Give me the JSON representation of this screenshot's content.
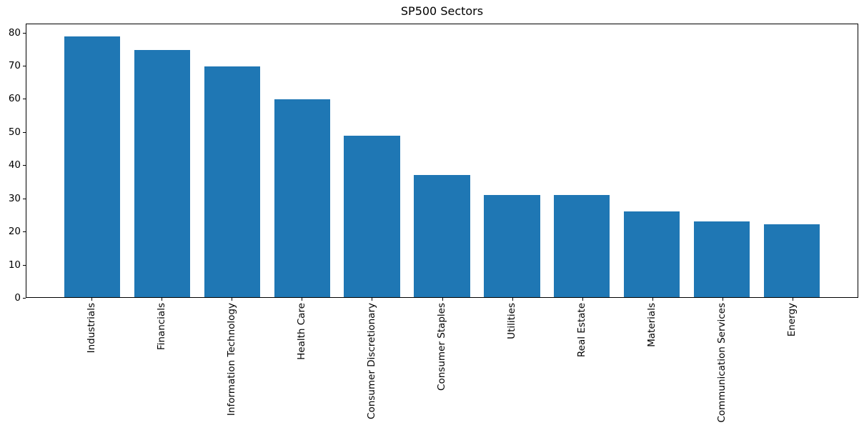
{
  "chart_data": {
    "type": "bar",
    "title": "SP500 Sectors",
    "xlabel": "",
    "ylabel": "",
    "categories": [
      "Industrials",
      "Financials",
      "Information Technology",
      "Health Care",
      "Consumer Discretionary",
      "Consumer Staples",
      "Utilities",
      "Real Estate",
      "Materials",
      "Communication Services",
      "Energy"
    ],
    "values": [
      79,
      75,
      70,
      60,
      49,
      37,
      31,
      31,
      26,
      23,
      22
    ],
    "yticks": [
      0,
      10,
      20,
      30,
      40,
      50,
      60,
      70,
      80
    ],
    "ylim": [
      0,
      82.7
    ],
    "xlim": [
      -0.94,
      10.94
    ],
    "bar_width_frac": 0.8,
    "x_tick_rotation_deg": 90,
    "grid": false,
    "legend": false,
    "colors": {
      "bar": "#1f77b4",
      "text": "#000000",
      "spine": "#000000",
      "background": "#ffffff"
    }
  }
}
